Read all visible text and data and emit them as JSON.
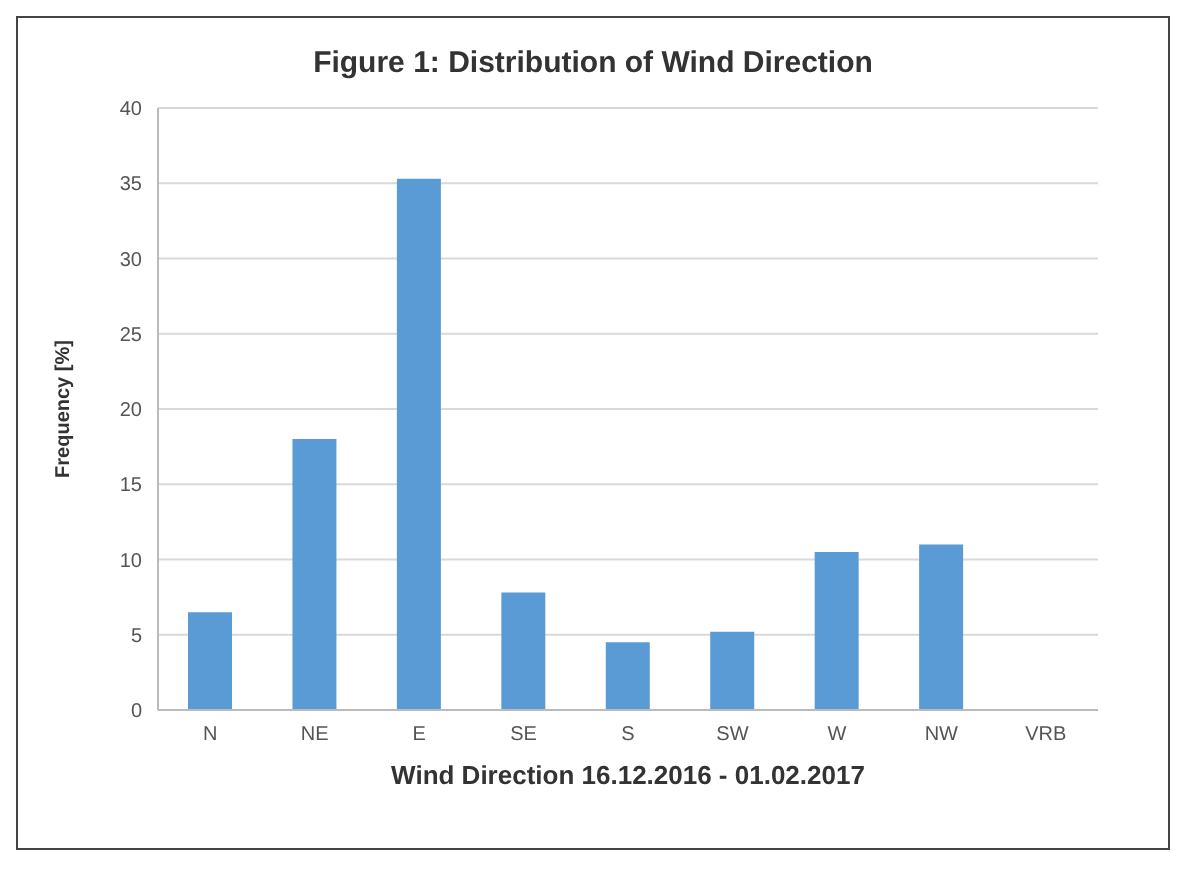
{
  "chart_data": {
    "type": "bar",
    "title": "Figure 1:  Distribution of Wind Direction",
    "xlabel": "Wind Direction 16.12.2016 - 01.02.2017",
    "ylabel": "Frequency [%]",
    "categories": [
      "N",
      "NE",
      "E",
      "SE",
      "S",
      "SW",
      "W",
      "NW",
      "VRB"
    ],
    "values": [
      6.5,
      18,
      35.3,
      7.8,
      4.5,
      5.2,
      10.5,
      11,
      0
    ],
    "color": "#5b9bd5",
    "ylim": [
      0,
      40
    ],
    "yticks": [
      0,
      5,
      10,
      15,
      20,
      25,
      30,
      35,
      40
    ],
    "grid": "y"
  }
}
